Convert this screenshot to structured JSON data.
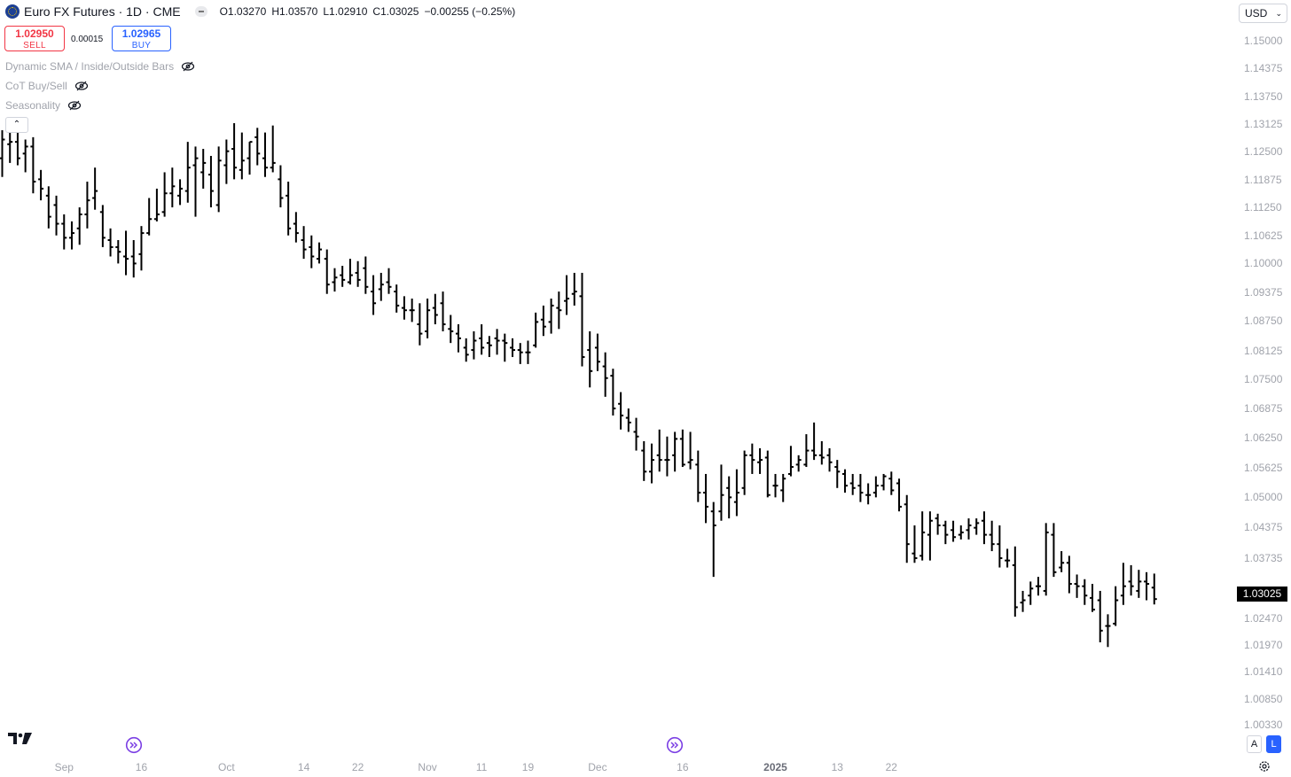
{
  "header": {
    "title": "Euro FX Futures · 1D · CME",
    "ohlc": {
      "open": "O1.03270",
      "high": "H1.03570",
      "low": "L1.02910",
      "close": "C1.03025",
      "change": "−0.00255 (−0.25%)"
    }
  },
  "trade": {
    "sell_price": "1.02950",
    "sell_label": "SELL",
    "spread": "0.00015",
    "buy_price": "1.02965",
    "buy_label": "BUY"
  },
  "indicators": [
    {
      "label": "Dynamic SMA / Inside/Outside Bars"
    },
    {
      "label": "CoT Buy/Sell"
    },
    {
      "label": "Seasonality"
    }
  ],
  "currency": "USD",
  "last_price_label": "1.03025",
  "scale_buttons": {
    "auto": "A",
    "log": "L"
  },
  "colors": {
    "bars": "#000000",
    "sell": "#f23645",
    "buy": "#2962ff",
    "axis_text": "#a0a3ab",
    "event_icon": "#7b3fe4"
  },
  "chart_data": {
    "type": "ohlc",
    "ylim": [
      1.0009,
      1.1543
    ],
    "y_ticks": [
      "1.15000",
      "1.14375",
      "1.13750",
      "1.13125",
      "1.12500",
      "1.11875",
      "1.11250",
      "1.10625",
      "1.10000",
      "1.09375",
      "1.08750",
      "1.08125",
      "1.07500",
      "1.06875",
      "1.06250",
      "1.05625",
      "1.05000",
      "1.04375",
      "1.03735",
      "1.02470",
      "1.01970",
      "1.01410",
      "1.00850",
      "1.00330"
    ],
    "x_ticks": [
      {
        "label": "Sep",
        "index": 8
      },
      {
        "label": "16",
        "index": 18
      },
      {
        "label": "Oct",
        "index": 29
      },
      {
        "label": "14",
        "index": 39
      },
      {
        "label": "22",
        "index": 46
      },
      {
        "label": "Nov",
        "index": 55
      },
      {
        "label": "11",
        "index": 62
      },
      {
        "label": "19",
        "index": 68
      },
      {
        "label": "Dec",
        "index": 77
      },
      {
        "label": "16",
        "index": 88
      },
      {
        "label": "2025",
        "index": 100,
        "bold": true
      },
      {
        "label": "13",
        "index": 108
      },
      {
        "label": "22",
        "index": 115
      }
    ],
    "event_markers": [
      {
        "index": 17
      },
      {
        "index": 87
      }
    ],
    "bars": [
      [
        1.1245,
        1.1305,
        1.1205,
        1.1285
      ],
      [
        1.1275,
        1.133,
        1.1235,
        1.128
      ],
      [
        1.128,
        1.131,
        1.123,
        1.1245
      ],
      [
        1.1255,
        1.1285,
        1.1215,
        1.127
      ],
      [
        1.127,
        1.129,
        1.117,
        1.1195
      ],
      [
        1.12,
        1.122,
        1.1155,
        1.118
      ],
      [
        1.1165,
        1.1185,
        1.1095,
        1.112
      ],
      [
        1.1145,
        1.1165,
        1.108,
        1.1105
      ],
      [
        1.1105,
        1.1125,
        1.105,
        1.1075
      ],
      [
        1.1075,
        1.111,
        1.105,
        1.1085
      ],
      [
        1.1095,
        1.114,
        1.106,
        1.1125
      ],
      [
        1.1125,
        1.1195,
        1.1095,
        1.1155
      ],
      [
        1.116,
        1.1225,
        1.1135,
        1.1175
      ],
      [
        1.113,
        1.1145,
        1.1055,
        1.1075
      ],
      [
        1.107,
        1.1095,
        1.1035,
        1.1055
      ],
      [
        1.1055,
        1.107,
        1.102,
        1.1045
      ],
      [
        1.1035,
        1.109,
        1.0995,
        1.103
      ],
      [
        1.1035,
        1.107,
        1.099,
        1.102
      ],
      [
        1.104,
        1.11,
        1.1005,
        1.1085
      ],
      [
        1.1085,
        1.116,
        1.108,
        1.1115
      ],
      [
        1.1115,
        1.118,
        1.111,
        1.1125
      ],
      [
        1.113,
        1.1215,
        1.112,
        1.117
      ],
      [
        1.117,
        1.1225,
        1.114,
        1.1185
      ],
      [
        1.1165,
        1.12,
        1.1145,
        1.118
      ],
      [
        1.1175,
        1.128,
        1.115,
        1.1225
      ],
      [
        1.123,
        1.127,
        1.112,
        1.1245
      ],
      [
        1.1215,
        1.1265,
        1.118,
        1.1235
      ],
      [
        1.121,
        1.125,
        1.114,
        1.1175
      ],
      [
        1.1145,
        1.127,
        1.113,
        1.124
      ],
      [
        1.123,
        1.1285,
        1.119,
        1.126
      ],
      [
        1.1265,
        1.132,
        1.12,
        1.1225
      ],
      [
        1.122,
        1.13,
        1.12,
        1.124
      ],
      [
        1.1245,
        1.128,
        1.121,
        1.128
      ],
      [
        1.129,
        1.131,
        1.123,
        1.1255
      ],
      [
        1.1245,
        1.13,
        1.1205,
        1.1225
      ],
      [
        1.1225,
        1.1315,
        1.1215,
        1.1235
      ],
      [
        1.12,
        1.123,
        1.114,
        1.116
      ],
      [
        1.1165,
        1.1195,
        1.108,
        1.1095
      ],
      [
        1.1105,
        1.113,
        1.1065,
        1.1085
      ],
      [
        1.107,
        1.11,
        1.103,
        1.105
      ],
      [
        1.1055,
        1.108,
        1.101,
        1.1035
      ],
      [
        1.103,
        1.1065,
        1.102,
        1.105
      ],
      [
        1.103,
        1.105,
        1.0955,
        1.0975
      ],
      [
        1.098,
        1.101,
        1.096,
        1.099
      ],
      [
        1.0995,
        1.1015,
        1.097,
        1.0985
      ],
      [
        1.098,
        1.103,
        1.0975,
        1.0995
      ],
      [
        1.1,
        1.1025,
        1.097,
        1.0985
      ],
      [
        1.101,
        1.1035,
        1.0955,
        1.097
      ],
      [
        1.096,
        1.0995,
        1.091,
        1.0935
      ],
      [
        1.0965,
        1.1,
        1.094,
        1.0975
      ],
      [
        1.098,
        1.101,
        1.0955,
        1.097
      ],
      [
        1.096,
        1.0975,
        1.0915,
        1.093
      ],
      [
        1.0925,
        1.095,
        1.09,
        1.092
      ],
      [
        1.092,
        1.0945,
        1.0895,
        1.092
      ],
      [
        1.089,
        1.0935,
        1.0845,
        1.087
      ],
      [
        1.0875,
        1.0945,
        1.086,
        1.092
      ],
      [
        1.0925,
        1.0955,
        1.089,
        1.091
      ],
      [
        1.0935,
        1.096,
        1.0875,
        1.089
      ],
      [
        1.088,
        1.091,
        1.085,
        1.0875
      ],
      [
        1.087,
        1.089,
        1.083,
        1.086
      ],
      [
        1.084,
        1.086,
        1.081,
        1.0825
      ],
      [
        1.0835,
        1.0875,
        1.0815,
        1.0855
      ],
      [
        1.086,
        1.089,
        1.0825,
        1.084
      ],
      [
        1.085,
        1.0865,
        1.082,
        1.0845
      ],
      [
        1.086,
        1.088,
        1.0825,
        1.0855
      ],
      [
        1.0855,
        1.087,
        1.081,
        1.085
      ],
      [
        1.084,
        1.086,
        1.082,
        1.0835
      ],
      [
        1.0835,
        1.085,
        1.0805,
        1.083
      ],
      [
        1.083,
        1.0855,
        1.0805,
        1.083
      ],
      [
        1.0845,
        1.0915,
        1.084,
        1.0895
      ],
      [
        1.09,
        1.093,
        1.0865,
        1.0885
      ],
      [
        1.0895,
        1.0945,
        1.087,
        1.093
      ],
      [
        1.0925,
        1.096,
        1.088,
        1.092
      ],
      [
        1.094,
        1.0995,
        1.091,
        1.0945
      ],
      [
        1.0955,
        1.1,
        1.093,
        1.096
      ],
      [
        1.095,
        1.1,
        1.08,
        1.082
      ],
      [
        1.0835,
        1.0875,
        1.0755,
        1.079
      ],
      [
        1.084,
        1.087,
        1.079,
        1.081
      ],
      [
        1.08,
        1.083,
        1.0735,
        1.0775
      ],
      [
        1.078,
        1.0795,
        1.0695,
        1.071
      ],
      [
        1.072,
        1.0745,
        1.0665,
        1.0695
      ],
      [
        1.069,
        1.071,
        1.066,
        1.068
      ],
      [
        1.066,
        1.069,
        1.062,
        1.065
      ],
      [
        1.062,
        1.064,
        1.0555,
        1.0575
      ],
      [
        1.0575,
        1.0635,
        1.055,
        1.06
      ],
      [
        1.061,
        1.0665,
        1.0575,
        1.06
      ],
      [
        1.06,
        1.065,
        1.0565,
        1.06
      ],
      [
        1.061,
        1.066,
        1.0575,
        1.0645
      ],
      [
        1.0645,
        1.0665,
        1.0585,
        1.059
      ],
      [
        1.0595,
        1.066,
        1.058,
        1.06
      ],
      [
        1.059,
        1.062,
        1.051,
        1.053
      ],
      [
        1.053,
        1.057,
        1.0465,
        1.05
      ],
      [
        1.049,
        1.051,
        1.035,
        1.046
      ],
      [
        1.049,
        1.059,
        1.047,
        1.0525
      ],
      [
        1.054,
        1.0565,
        1.0475,
        1.052
      ],
      [
        1.051,
        1.058,
        1.048,
        1.053
      ],
      [
        1.054,
        1.062,
        1.0525,
        1.061
      ],
      [
        1.061,
        1.0635,
        1.057,
        1.06
      ],
      [
        1.0595,
        1.0625,
        1.057,
        1.06
      ],
      [
        1.0605,
        1.062,
        1.052,
        1.0525
      ],
      [
        1.0545,
        1.057,
        1.052,
        1.0545
      ],
      [
        1.0535,
        1.057,
        1.051,
        1.056
      ],
      [
        1.057,
        1.063,
        1.0565,
        1.0585
      ],
      [
        1.059,
        1.061,
        1.0575,
        1.06
      ],
      [
        1.059,
        1.0655,
        1.0585,
        1.062
      ],
      [
        1.062,
        1.068,
        1.06,
        1.061
      ],
      [
        1.061,
        1.064,
        1.059,
        1.0605
      ],
      [
        1.061,
        1.0625,
        1.0575,
        1.0595
      ],
      [
        1.0585,
        1.06,
        1.054,
        1.0575
      ],
      [
        1.057,
        1.058,
        1.053,
        1.0545
      ],
      [
        1.055,
        1.057,
        1.0525,
        1.054
      ],
      [
        1.0545,
        1.057,
        1.051,
        1.053
      ],
      [
        1.0525,
        1.055,
        1.0505,
        1.0525
      ],
      [
        1.053,
        1.0565,
        1.052,
        1.0545
      ],
      [
        1.0545,
        1.057,
        1.0535,
        1.0565
      ],
      [
        1.056,
        1.0575,
        1.0525,
        1.0535
      ],
      [
        1.055,
        1.056,
        1.049,
        1.05
      ],
      [
        1.0505,
        1.0525,
        1.038,
        1.042
      ],
      [
        1.04,
        1.046,
        1.038,
        1.039
      ],
      [
        1.0395,
        1.049,
        1.0385,
        1.0445
      ],
      [
        1.044,
        1.049,
        1.0385,
        1.047
      ],
      [
        1.0475,
        1.0485,
        1.044,
        1.046
      ],
      [
        1.046,
        1.047,
        1.042,
        1.044
      ],
      [
        1.045,
        1.047,
        1.0425,
        1.0435
      ],
      [
        1.044,
        1.046,
        1.043,
        1.0445
      ],
      [
        1.045,
        1.0475,
        1.043,
        1.046
      ],
      [
        1.0455,
        1.0475,
        1.044,
        1.0465
      ],
      [
        1.047,
        1.049,
        1.042,
        1.044
      ],
      [
        1.044,
        1.047,
        1.0405,
        1.042
      ],
      [
        1.042,
        1.046,
        1.037,
        1.039
      ],
      [
        1.0385,
        1.041,
        1.037,
        1.0385
      ],
      [
        1.0375,
        1.0415,
        1.0265,
        1.0285
      ],
      [
        1.0295,
        1.032,
        1.0275,
        1.03
      ],
      [
        1.031,
        1.034,
        1.029,
        1.0325
      ],
      [
        1.033,
        1.035,
        1.031,
        1.033
      ],
      [
        1.032,
        1.0465,
        1.031,
        1.0445
      ],
      [
        1.044,
        1.0465,
        1.035,
        1.036
      ],
      [
        1.037,
        1.0405,
        1.036,
        1.038
      ],
      [
        1.038,
        1.0395,
        1.0315,
        1.0335
      ],
      [
        1.0335,
        1.0355,
        1.0305,
        1.033
      ],
      [
        1.033,
        1.0345,
        1.029,
        1.031
      ],
      [
        1.0305,
        1.0335,
        1.0275,
        1.028
      ],
      [
        1.03,
        1.032,
        1.021,
        1.0235
      ],
      [
        1.0245,
        1.027,
        1.02,
        1.0245
      ],
      [
        1.025,
        1.033,
        1.0245,
        1.03
      ],
      [
        1.031,
        1.038,
        1.029,
        1.033
      ],
      [
        1.034,
        1.0375,
        1.031,
        1.033
      ],
      [
        1.032,
        1.0365,
        1.0305,
        1.034
      ],
      [
        1.034,
        1.036,
        1.03,
        1.0335
      ],
      [
        1.0327,
        1.0357,
        1.0291,
        1.03025
      ]
    ]
  }
}
